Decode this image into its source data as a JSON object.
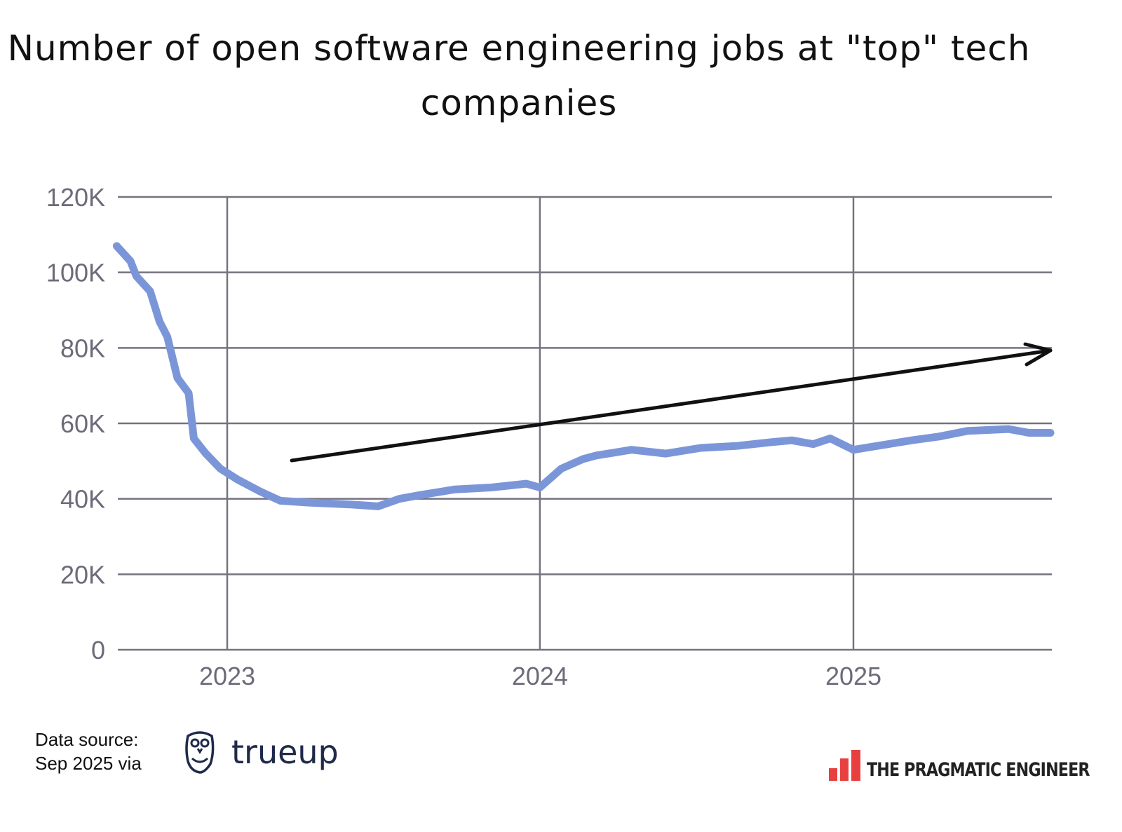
{
  "chart_data": {
    "type": "line",
    "title": "Number of open software engineering jobs at \"top\" tech companies",
    "xlabel": "",
    "ylabel": "",
    "x_tick_labels": [
      "2023",
      "2024",
      "2025"
    ],
    "x_ticks": [
      "2023-01-01",
      "2024-01-01",
      "2025-01-01"
    ],
    "y_tick_labels": [
      "0",
      "20K",
      "40K",
      "60K",
      "80K",
      "100K",
      "120K"
    ],
    "y_ticks": [
      0,
      20000,
      40000,
      60000,
      80000,
      100000,
      120000
    ],
    "xlim": [
      "2022-08-25",
      "2025-08-19"
    ],
    "ylim": [
      0,
      120000
    ],
    "grid": true,
    "line_color": "#7b96d8",
    "annotation": "upward trend arrow",
    "series": [
      {
        "x": [
          "2022-08-25",
          "2022-09-10",
          "2022-09-17",
          "2022-10-03",
          "2022-10-14",
          "2022-10-23",
          "2022-11-04",
          "2022-11-17",
          "2022-11-23",
          "2022-12-07",
          "2022-12-24",
          "2023-01-14",
          "2023-02-08",
          "2023-03-04",
          "2023-04-05",
          "2023-05-25",
          "2023-06-26",
          "2023-07-21",
          "2023-08-14",
          "2023-09-24",
          "2023-11-05",
          "2023-12-16",
          "2024-01-01",
          "2024-01-26",
          "2024-02-20",
          "2024-03-07",
          "2024-04-17",
          "2024-05-27",
          "2024-07-07",
          "2024-08-17",
          "2024-09-27",
          "2024-10-21",
          "2024-11-15",
          "2024-12-05",
          "2025-01-01",
          "2025-01-28",
          "2025-03-10",
          "2025-04-11",
          "2025-05-14",
          "2025-07-01",
          "2025-07-25",
          "2025-08-19"
        ],
        "values": [
          107000,
          103000,
          99000,
          95000,
          87000,
          83000,
          72000,
          68000,
          56000,
          52000,
          48000,
          45000,
          42000,
          39500,
          39000,
          38500,
          38000,
          40000,
          41000,
          42500,
          43000,
          44000,
          43000,
          48000,
          50500,
          51500,
          53000,
          52000,
          53500,
          54000,
          55000,
          55500,
          54500,
          56000,
          53000,
          54000,
          55500,
          56500,
          58000,
          58500,
          57500,
          57500
        ]
      }
    ]
  },
  "footer": {
    "source_line1": "Data source:",
    "source_line2": "Sep 2025 via",
    "trueup_logo": "trueup",
    "brand": "THE PRAGMATIC ENGINEER",
    "brand_color": "#e84040"
  }
}
